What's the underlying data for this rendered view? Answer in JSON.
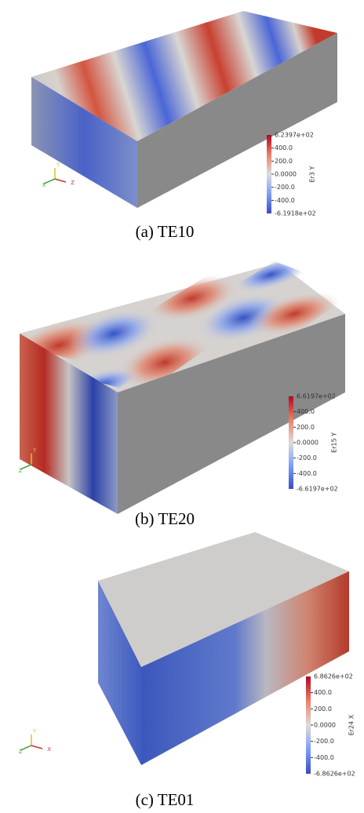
{
  "panels": [
    {
      "caption": "(a)  TE10",
      "colorbar": {
        "title": "Er3 Y",
        "max": "6.2397e+02",
        "ticks": [
          "400.0",
          "200.0",
          "0.0000",
          "-200.0",
          "-400.0"
        ],
        "min": "-6.1918e+02"
      },
      "axes": [
        "Y",
        "X",
        "Z"
      ]
    },
    {
      "caption": "(b)  TE20",
      "colorbar": {
        "title": "Er15 Y",
        "max": "6.6197e+02",
        "ticks": [
          "400.0",
          "200.0",
          "0.0000",
          "-200.0",
          "-400.0"
        ],
        "min": "-6.6197e+02"
      },
      "axes": [
        "Y",
        "Z",
        "X"
      ]
    },
    {
      "caption": "(c)  TE01",
      "colorbar": {
        "title": "Er24 X",
        "max": "6.8626e+02",
        "ticks": [
          "400.0",
          "200.0",
          "0.0000",
          "-200.0",
          "-400.0"
        ],
        "min": "-6.8626e+02"
      },
      "axes": [
        "Y",
        "Z",
        "X"
      ]
    }
  ]
}
